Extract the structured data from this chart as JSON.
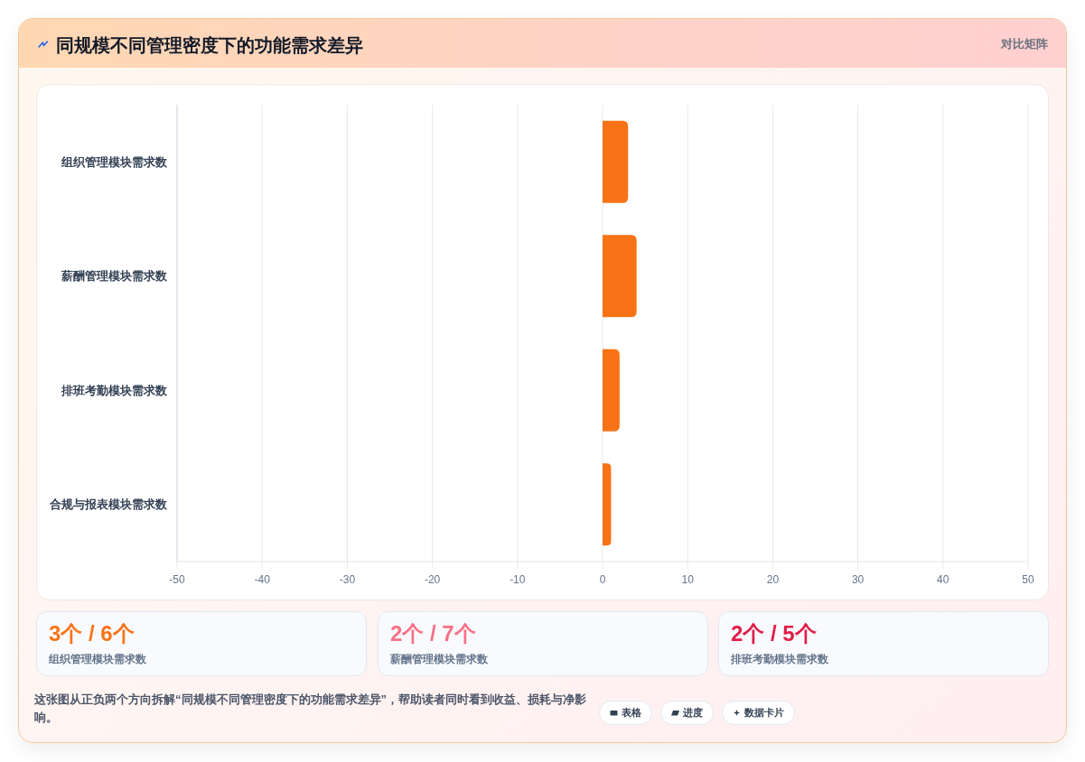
{
  "chart_data": [
    {
      "type": "bar",
      "orientation": "horizontal",
      "title": "同规模不同管理密度下的功能需求差异",
      "categories": [
        "组织管理模块需求数",
        "薪酬管理模块需求数",
        "排班考勤模块需求数",
        "合规与报表模块需求数"
      ],
      "values": [
        3,
        4,
        2,
        1
      ],
      "color": "#f97316",
      "xlim": [
        -50,
        50
      ],
      "xticks": [
        -50,
        -40,
        -30,
        -20,
        -10,
        0,
        10,
        20,
        30,
        40,
        50
      ],
      "grid": "x",
      "annotations": [
        "对比矩阵",
        "这张图从正负两个方向拆解“同规模不同管理密度下的功能需求差异”，帮助读者同时看到收益、损耗与净影响。",
        "表格",
        "进度",
        "数据卡片"
      ]
    },
    {
      "type": "other",
      "title": "3个 / 6个",
      "subtitle": "组织管理模块需求数",
      "color": "#f97316"
    },
    {
      "type": "other",
      "title": "2个 / 7个",
      "subtitle": "薪酬管理模块需求数",
      "color": "#f87186"
    },
    {
      "type": "other",
      "title": "2个 / 5个",
      "subtitle": "排班考勤模块需求数",
      "color": "#e11d48"
    }
  ]
}
